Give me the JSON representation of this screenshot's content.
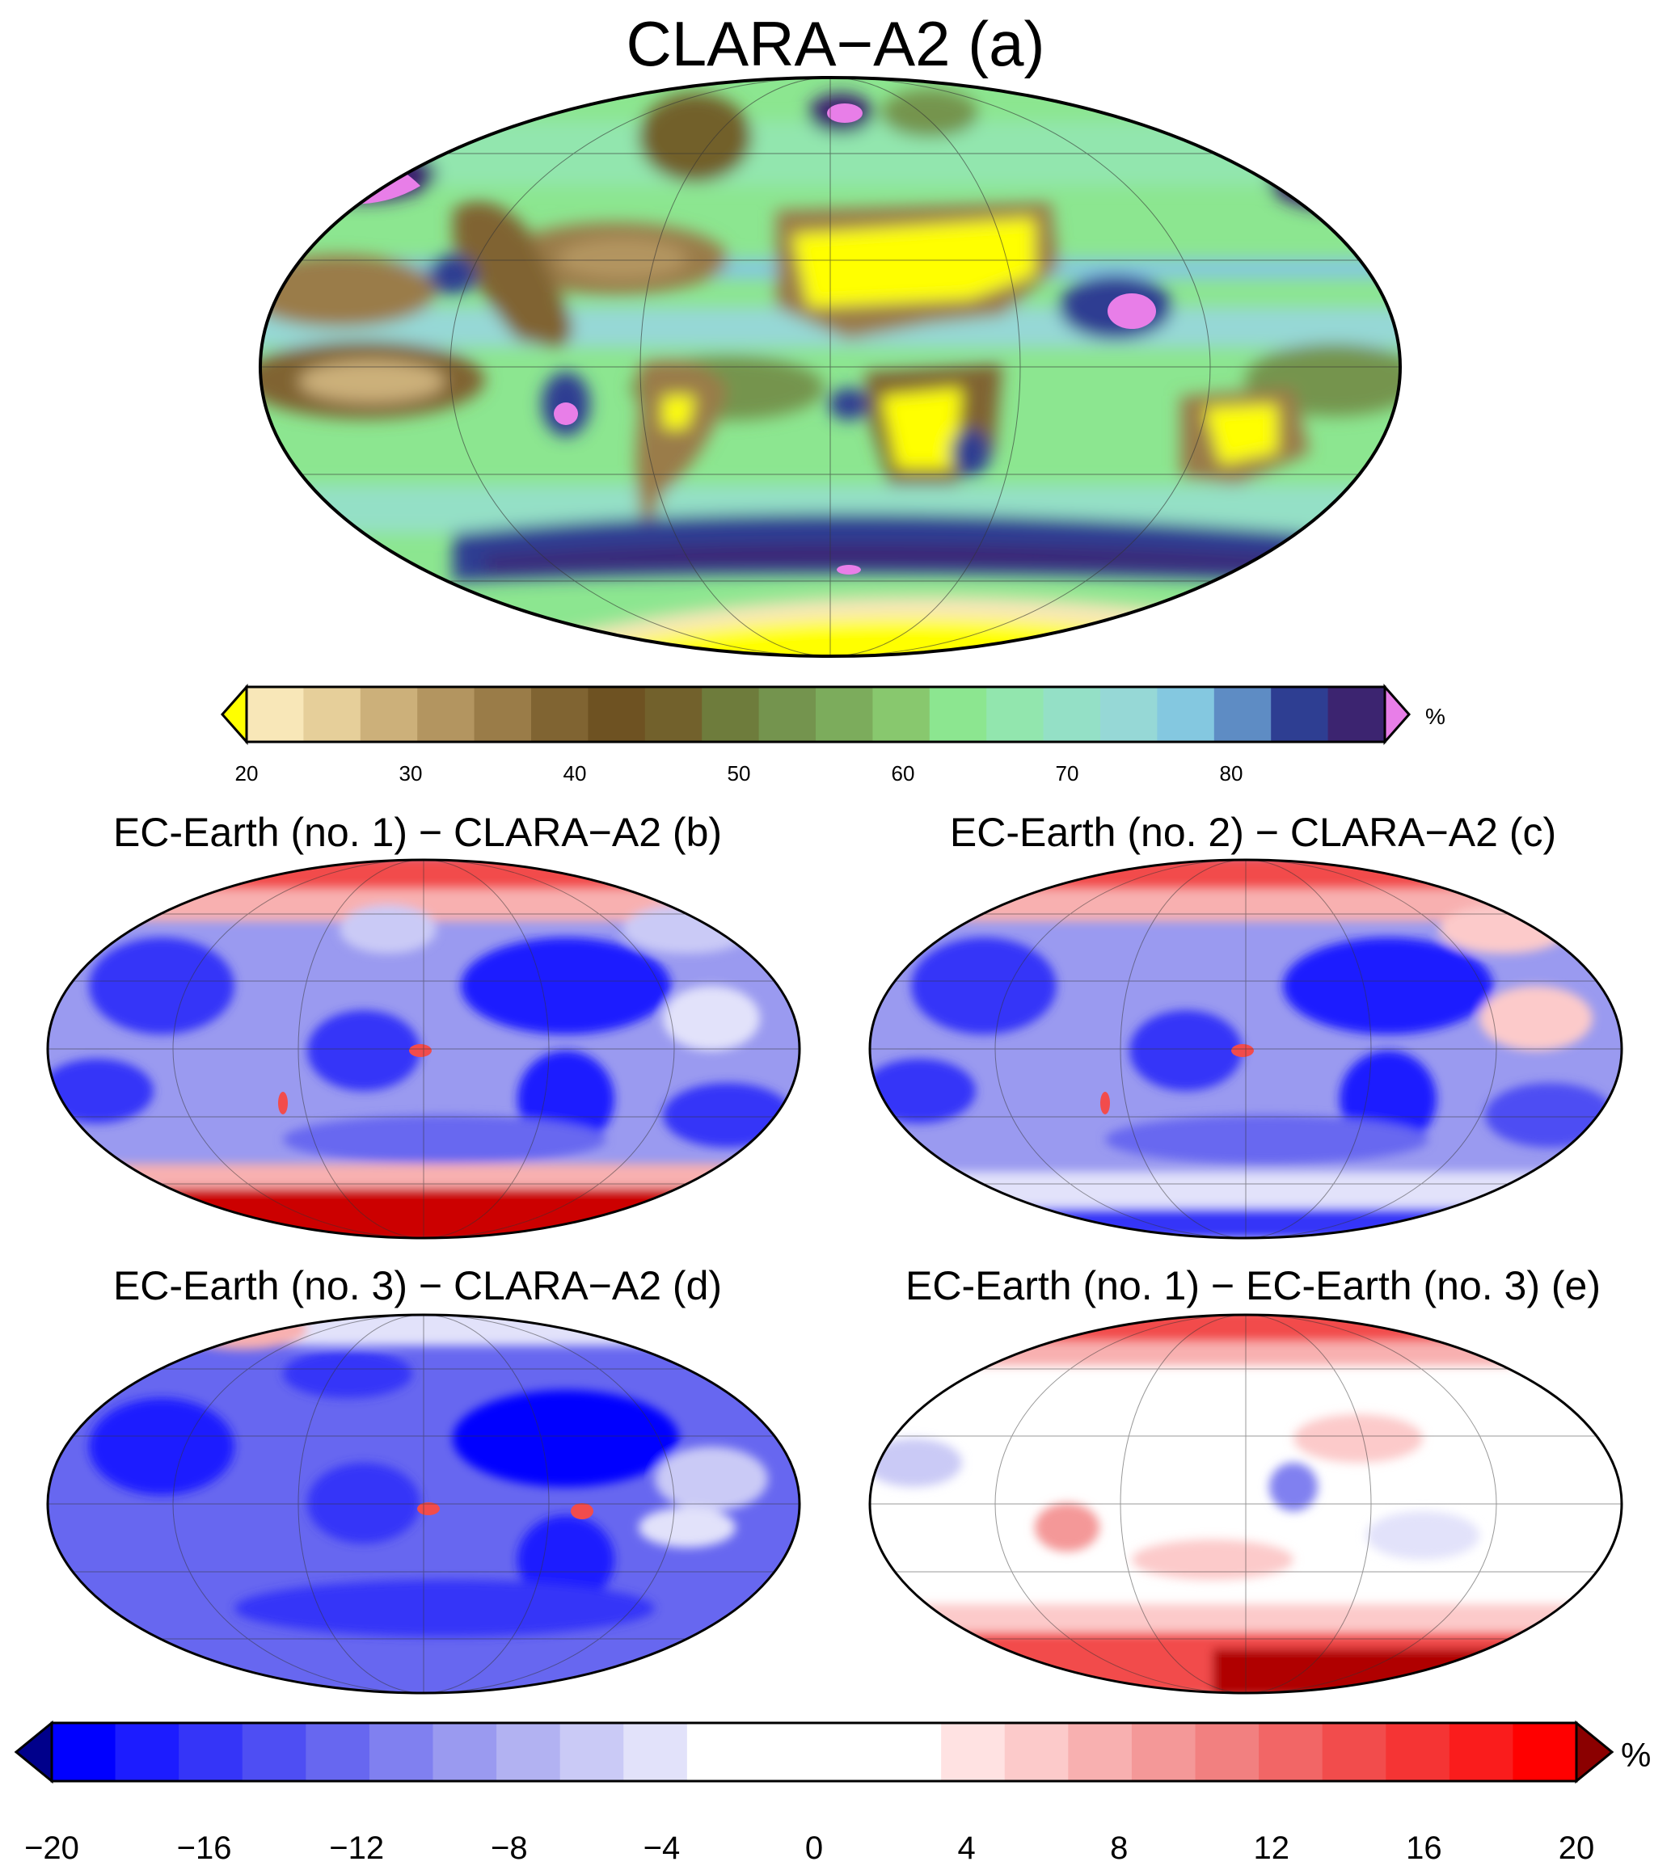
{
  "figure": {
    "panel_a_title": "CLARA−A2 (a)",
    "panel_b_title": "EC-Earth (no. 1) − CLARA−A2 (b)",
    "panel_c_title": "EC-Earth (no. 2) − CLARA−A2 (c)",
    "panel_d_title": "EC-Earth (no. 3) − CLARA−A2 (d)",
    "panel_e_title": "EC-Earth (no. 1) − EC-Earth (no. 3) (e)"
  },
  "colorbar_top": {
    "unit": "%",
    "ticks": [
      "20",
      "30",
      "40",
      "50",
      "60",
      "70",
      "80"
    ],
    "under_color": "#ffff00",
    "over_color": "#e87ee8",
    "colors": [
      "#f8e7b8",
      "#e6cf9a",
      "#ccb07a",
      "#b39560",
      "#9a7c48",
      "#806432",
      "#6e5222",
      "#72612c",
      "#6e7c3c",
      "#74944e",
      "#7cac5c",
      "#88c86e",
      "#8ce690",
      "#92e6ae",
      "#94e0c6",
      "#96d8d6",
      "#84c8e0",
      "#5e8cc4",
      "#2e3e92",
      "#3c2470"
    ]
  },
  "colorbar_bottom": {
    "unit": "%",
    "ticks": [
      "−20",
      "−16",
      "−12",
      "−8",
      "−4",
      "0",
      "4",
      "8",
      "12",
      "16",
      "20"
    ],
    "under_color": "#00008b",
    "over_color": "#8b0000",
    "colors": [
      "#0000ff",
      "#1c1cff",
      "#3535f8",
      "#4e4ef3",
      "#6767f0",
      "#8080f0",
      "#9a9af0",
      "#b2b2f2",
      "#cacaf6",
      "#e2e2fa",
      "#ffffff",
      "#ffffff",
      "#ffffff",
      "#ffffff",
      "#ffe2e2",
      "#fccaca",
      "#f8b0b0",
      "#f49898",
      "#f28080",
      "#f26666",
      "#f24c4c",
      "#f53434",
      "#fa1c1c",
      "#ff0000"
    ]
  }
}
